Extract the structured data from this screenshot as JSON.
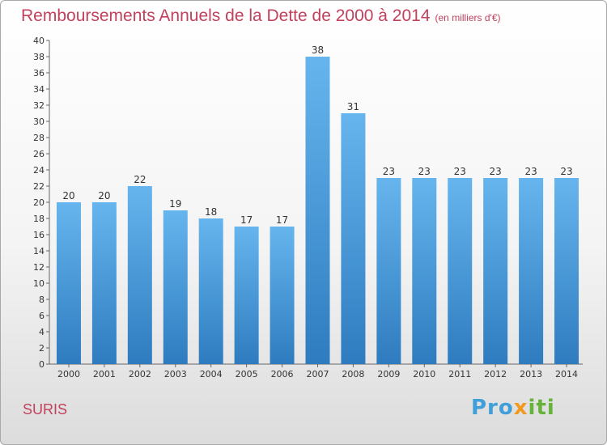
{
  "header": {
    "title": "Remboursements Annuels de la Dette de 2000 à 2014",
    "unit": "(en milliers d'€)"
  },
  "footer": {
    "town": "SURIS",
    "logo": [
      "Pro",
      "x",
      "iti"
    ]
  },
  "colors": {
    "bar_top": "#66b5ee",
    "bar_bottom": "#2e7cbf",
    "title": "#c2415c"
  },
  "chart_data": {
    "type": "bar",
    "title": "Remboursements Annuels de la Dette de 2000 à 2014",
    "subtitle": "(en milliers d'€)",
    "categories": [
      "2000",
      "2001",
      "2002",
      "2003",
      "2004",
      "2005",
      "2006",
      "2007",
      "2008",
      "2009",
      "2010",
      "2011",
      "2012",
      "2013",
      "2014"
    ],
    "values": [
      20,
      20,
      22,
      19,
      18,
      17,
      17,
      38,
      31,
      23,
      23,
      23,
      23,
      23,
      23
    ],
    "xlabel": "",
    "ylabel": "",
    "ylim": [
      0,
      40
    ],
    "yticks": [
      0,
      2,
      4,
      6,
      8,
      10,
      12,
      14,
      16,
      18,
      20,
      22,
      24,
      26,
      28,
      30,
      32,
      34,
      36,
      38,
      40
    ],
    "grid": false,
    "legend": "none"
  }
}
